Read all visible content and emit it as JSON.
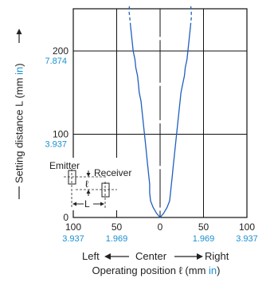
{
  "chart_data": {
    "type": "line",
    "title": "",
    "ylabel": {
      "prefix": "Setting distance L (mm ",
      "unit": "in",
      "suffix": ")"
    },
    "xlabel": {
      "prefix": "Operating position ℓ (mm ",
      "unit": "in",
      "suffix": ")"
    },
    "direction_labels": {
      "left": "Left",
      "center": "Center",
      "right": "Right"
    },
    "xlim": [
      -100,
      100
    ],
    "ylim": [
      0,
      250
    ],
    "x_ticks": [
      {
        "value": -100,
        "mm": "100",
        "inch": "3.937"
      },
      {
        "value": -50,
        "mm": "50",
        "inch": "1.969"
      },
      {
        "value": 0,
        "mm": "0",
        "inch": ""
      },
      {
        "value": 50,
        "mm": "50",
        "inch": "1.969"
      },
      {
        "value": 100,
        "mm": "100",
        "inch": "3.937"
      }
    ],
    "y_ticks": [
      {
        "value": 0,
        "mm": "0",
        "inch": ""
      },
      {
        "value": 100,
        "mm": "100",
        "inch": "3.937"
      },
      {
        "value": 200,
        "mm": "200",
        "inch": "7.874"
      }
    ],
    "grid": true,
    "line_color": "#1f5fbf",
    "inch_color": "#1a8fd0",
    "series": [
      {
        "name": "",
        "right_boundary": [
          [
            0,
            0
          ],
          [
            4,
            5
          ],
          [
            8,
            12
          ],
          [
            11,
            20
          ],
          [
            12,
            30
          ],
          [
            13,
            40
          ],
          [
            14,
            50
          ],
          [
            15,
            60
          ],
          [
            16,
            70
          ],
          [
            17,
            80
          ],
          [
            18,
            90
          ],
          [
            19,
            100
          ],
          [
            20,
            110
          ],
          [
            21,
            120
          ],
          [
            22,
            130
          ],
          [
            23,
            140
          ],
          [
            24,
            150
          ],
          [
            26,
            160
          ],
          [
            28,
            170
          ],
          [
            29,
            180
          ],
          [
            31,
            190
          ],
          [
            32,
            200
          ],
          [
            33,
            210
          ],
          [
            34,
            220
          ],
          [
            35,
            230
          ]
        ],
        "left_boundary": [
          [
            0,
            0
          ],
          [
            -4,
            5
          ],
          [
            -8,
            12
          ],
          [
            -11,
            20
          ],
          [
            -12,
            30
          ],
          [
            -12,
            40
          ],
          [
            -13,
            50
          ],
          [
            -14,
            60
          ],
          [
            -15,
            70
          ],
          [
            -16,
            80
          ],
          [
            -17,
            90
          ],
          [
            -18,
            100
          ],
          [
            -19,
            110
          ],
          [
            -20,
            120
          ],
          [
            -21,
            130
          ],
          [
            -22,
            140
          ],
          [
            -24,
            150
          ],
          [
            -25,
            160
          ],
          [
            -26,
            170
          ],
          [
            -28,
            180
          ],
          [
            -29,
            190
          ],
          [
            -31,
            200
          ],
          [
            -32,
            210
          ],
          [
            -33,
            220
          ],
          [
            -34,
            230
          ]
        ],
        "right_dashed": [
          [
            35,
            230
          ],
          [
            36,
            240
          ],
          [
            36,
            250
          ],
          [
            35,
            255
          ]
        ],
        "left_dashed": [
          [
            -34,
            230
          ],
          [
            -35,
            240
          ],
          [
            -36,
            250
          ],
          [
            -35,
            255
          ]
        ]
      }
    ],
    "center_marks": [
      10,
      60,
      115,
      160,
      215
    ],
    "inset": {
      "emitter_label": "Emitter",
      "receiver_label": "Receiver",
      "ell_label": "ℓ",
      "L_label": "L"
    }
  }
}
